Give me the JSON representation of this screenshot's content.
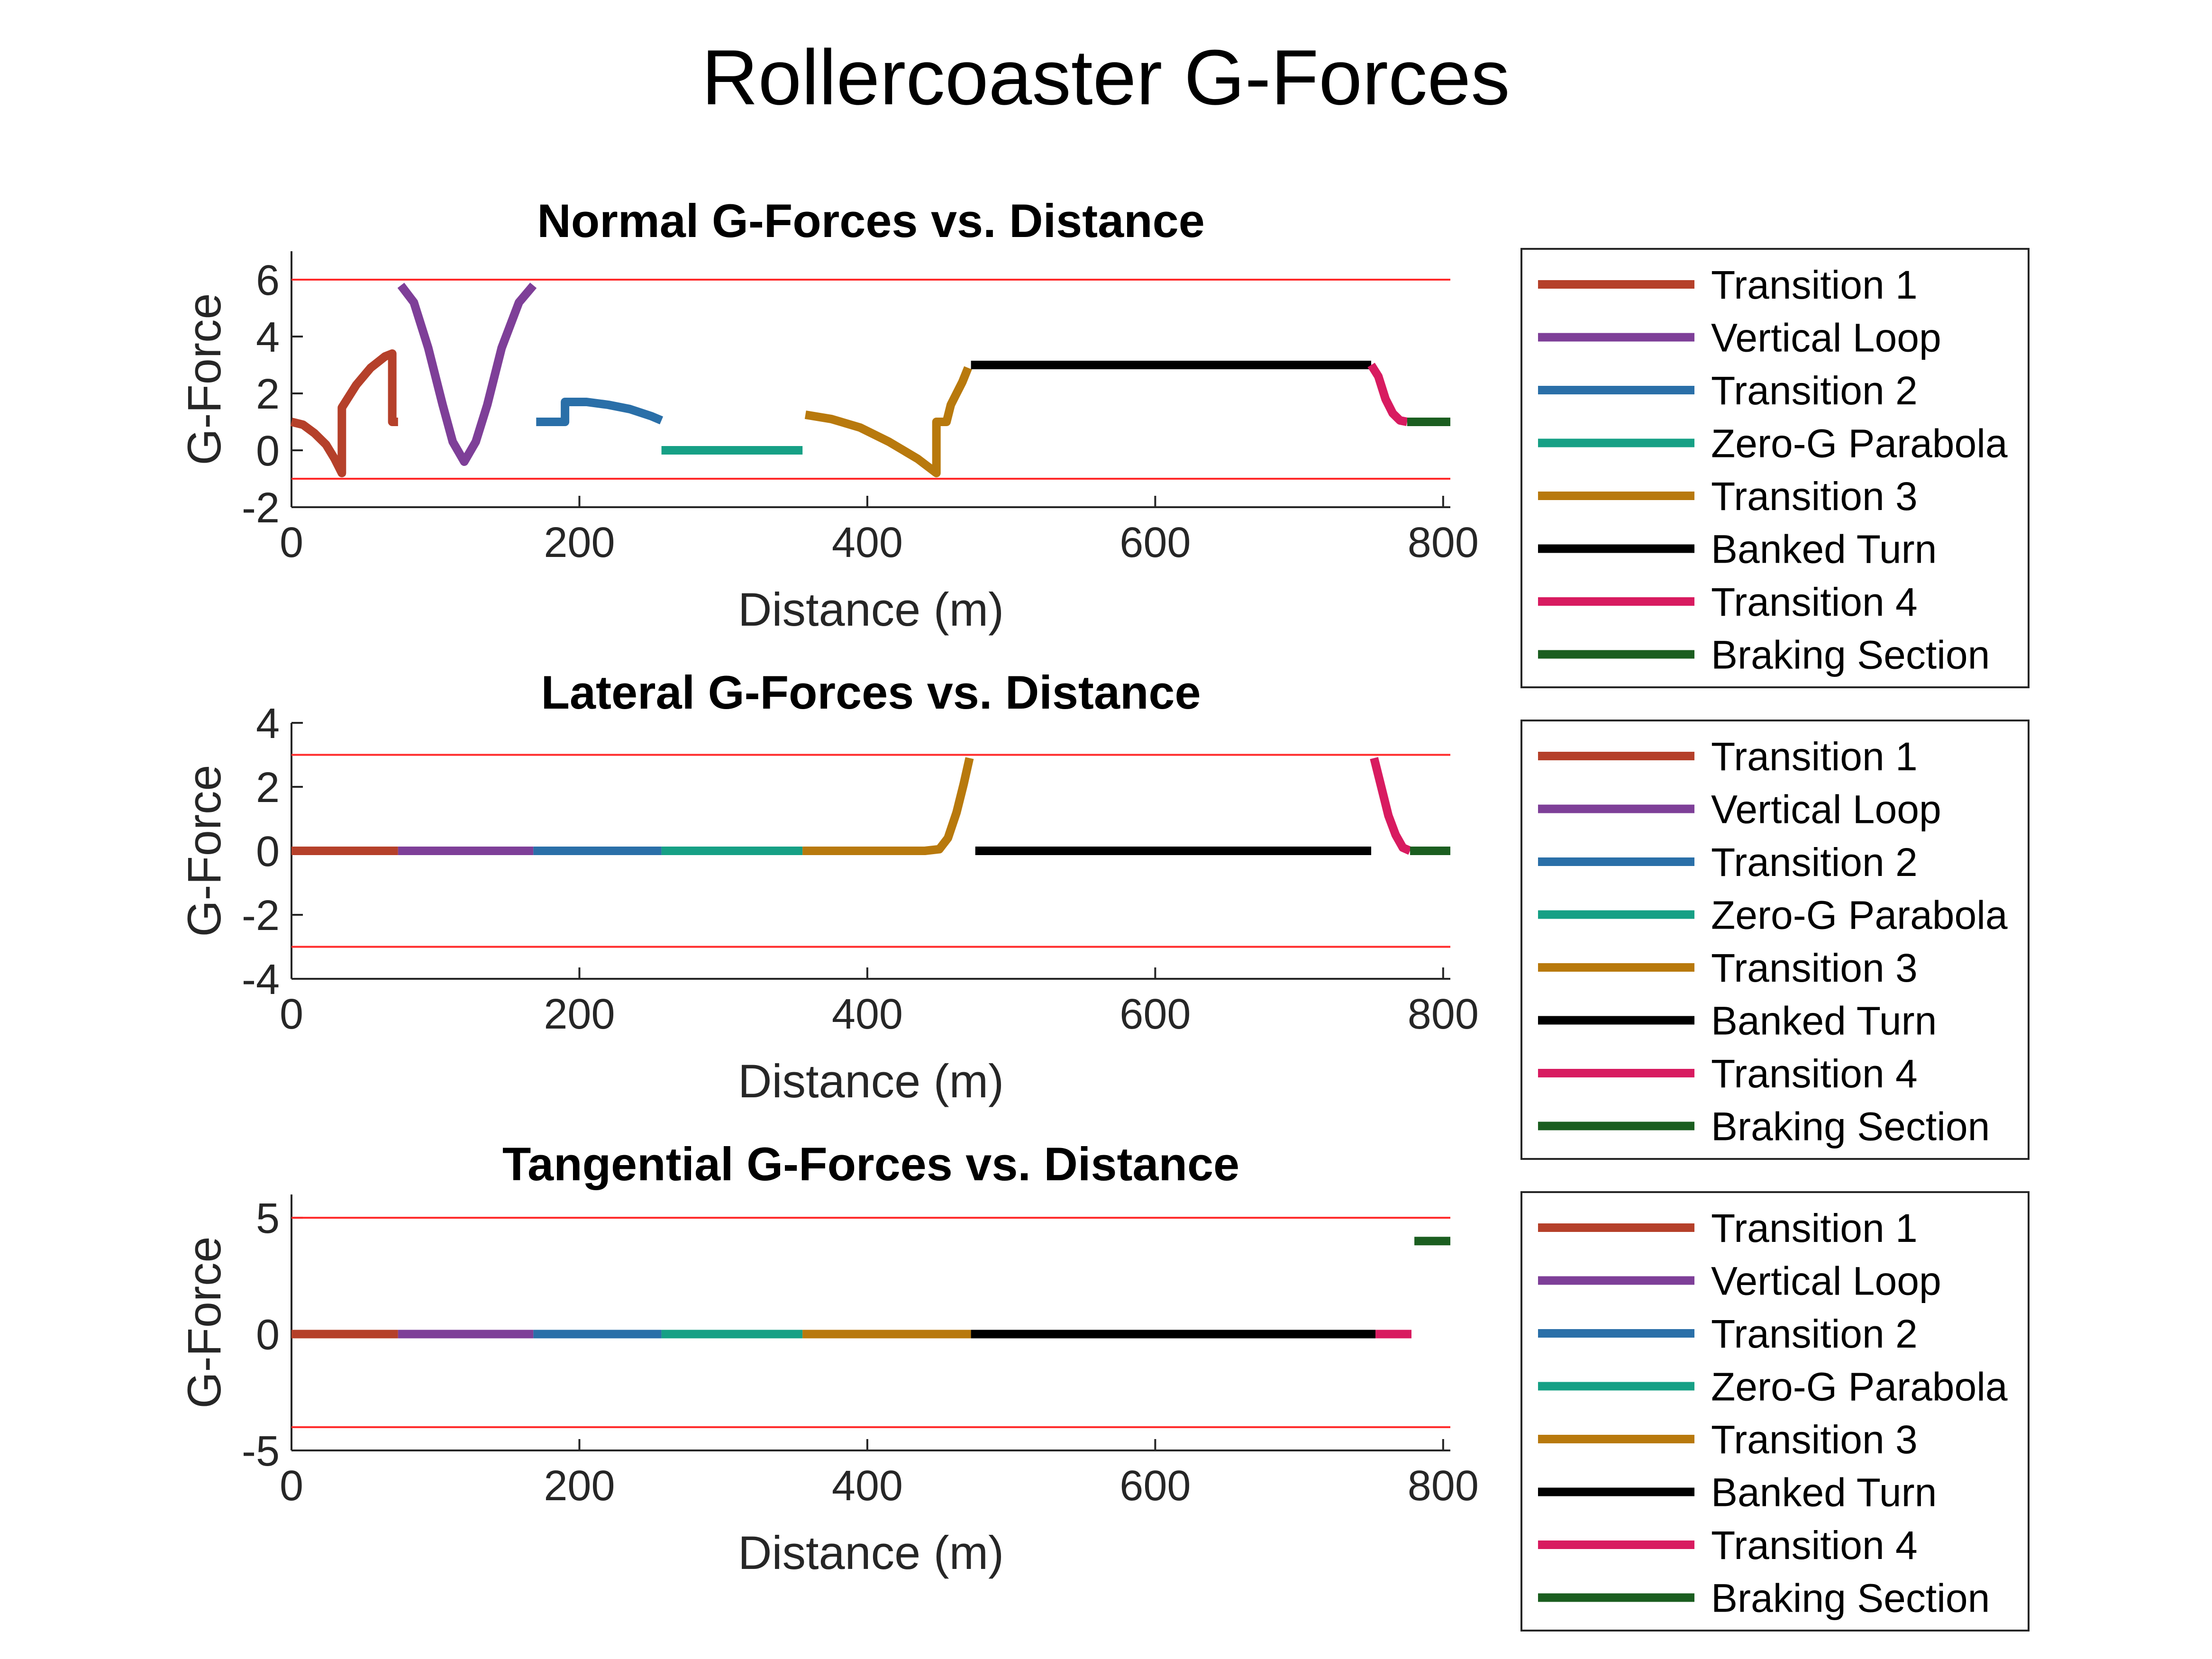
{
  "title": "Rollercoaster G-Forces",
  "colors": {
    "threshold": "#ff2a2a",
    "axis": "#262626",
    "Transition 1": "#b5402a",
    "Vertical Loop": "#7e3f98",
    "Transition 2": "#2a6fa8",
    "Zero-G Parabola": "#16a085",
    "Transition 3": "#b8790d",
    "Banked Turn": "#000000",
    "Transition 4": "#d81b60",
    "Braking Section": "#1b5e20"
  },
  "chart_data": [
    {
      "type": "line",
      "title": "Normal G-Forces vs. Distance",
      "xlabel": "Distance (m)",
      "ylabel": "G-Force",
      "xlim": [
        0,
        805
      ],
      "ylim": [
        -2,
        7
      ],
      "xticks": [
        0,
        200,
        400,
        600,
        800
      ],
      "yticks": [
        -2,
        0,
        2,
        4,
        6
      ],
      "thresholds": [
        6,
        -1
      ],
      "grid": false,
      "legend_position": "right",
      "legend": [
        "Transition 1",
        "Vertical Loop",
        "Transition 2",
        "Zero-G Parabola",
        "Transition 3",
        "Banked Turn",
        "Transition 4",
        "Braking Section"
      ],
      "series": [
        {
          "name": "Transition 1",
          "points": [
            [
              0,
              1.0
            ],
            [
              8,
              0.9
            ],
            [
              16,
              0.6
            ],
            [
              24,
              0.2
            ],
            [
              30,
              -0.3
            ],
            [
              35,
              -0.8
            ],
            [
              35,
              1.5
            ],
            [
              45,
              2.3
            ],
            [
              55,
              2.9
            ],
            [
              65,
              3.3
            ],
            [
              70,
              3.4
            ],
            [
              70,
              1.0
            ],
            [
              74,
              1.0
            ]
          ]
        },
        {
          "name": "Vertical Loop",
          "points": [
            [
              76,
              5.8
            ],
            [
              85,
              5.2
            ],
            [
              95,
              3.6
            ],
            [
              105,
              1.6
            ],
            [
              112,
              0.3
            ],
            [
              120,
              -0.4
            ],
            [
              128,
              0.3
            ],
            [
              136,
              1.6
            ],
            [
              146,
              3.6
            ],
            [
              158,
              5.2
            ],
            [
              168,
              5.8
            ]
          ]
        },
        {
          "name": "Transition 2",
          "points": [
            [
              170,
              1.0
            ],
            [
              190,
              1.0
            ],
            [
              190,
              1.7
            ],
            [
              205,
              1.7
            ],
            [
              220,
              1.6
            ],
            [
              235,
              1.45
            ],
            [
              250,
              1.2
            ],
            [
              257,
              1.05
            ]
          ]
        },
        {
          "name": "Zero-G Parabola",
          "points": [
            [
              257,
              0.0
            ],
            [
              355,
              0.0
            ]
          ]
        },
        {
          "name": "Transition 3",
          "points": [
            [
              357,
              1.25
            ],
            [
              375,
              1.1
            ],
            [
              395,
              0.8
            ],
            [
              415,
              0.3
            ],
            [
              435,
              -0.3
            ],
            [
              448,
              -0.8
            ],
            [
              448,
              1.0
            ],
            [
              455,
              1.0
            ],
            [
              458,
              1.6
            ],
            [
              462,
              2.0
            ],
            [
              466,
              2.4
            ],
            [
              470,
              2.9
            ]
          ]
        },
        {
          "name": "Banked Turn",
          "points": [
            [
              472,
              3.0
            ],
            [
              750,
              3.0
            ]
          ]
        },
        {
          "name": "Transition 4",
          "points": [
            [
              750,
              3.0
            ],
            [
              755,
              2.6
            ],
            [
              760,
              1.8
            ],
            [
              765,
              1.3
            ],
            [
              770,
              1.05
            ],
            [
              775,
              1.0
            ]
          ]
        },
        {
          "name": "Braking Section",
          "points": [
            [
              775,
              1.0
            ],
            [
              805,
              1.0
            ]
          ]
        }
      ]
    },
    {
      "type": "line",
      "title": "Lateral G-Forces vs. Distance",
      "xlabel": "Distance (m)",
      "ylabel": "G-Force",
      "xlim": [
        0,
        805
      ],
      "ylim": [
        -4,
        4
      ],
      "xticks": [
        0,
        200,
        400,
        600,
        800
      ],
      "yticks": [
        -4,
        -2,
        0,
        2,
        4
      ],
      "thresholds": [
        3,
        -3
      ],
      "grid": false,
      "legend_position": "right",
      "legend": [
        "Transition 1",
        "Vertical Loop",
        "Transition 2",
        "Zero-G Parabola",
        "Transition 3",
        "Banked Turn",
        "Transition 4",
        "Braking Section"
      ],
      "series": [
        {
          "name": "Transition 1",
          "points": [
            [
              0,
              0
            ],
            [
              74,
              0
            ]
          ]
        },
        {
          "name": "Vertical Loop",
          "points": [
            [
              74,
              0
            ],
            [
              168,
              0
            ]
          ]
        },
        {
          "name": "Transition 2",
          "points": [
            [
              168,
              0
            ],
            [
              257,
              0
            ]
          ]
        },
        {
          "name": "Zero-G Parabola",
          "points": [
            [
              257,
              0
            ],
            [
              355,
              0
            ]
          ]
        },
        {
          "name": "Transition 3",
          "points": [
            [
              355,
              0
            ],
            [
              440,
              0
            ],
            [
              450,
              0.05
            ],
            [
              456,
              0.4
            ],
            [
              462,
              1.2
            ],
            [
              467,
              2.1
            ],
            [
              471,
              2.9
            ]
          ]
        },
        {
          "name": "Banked Turn",
          "points": [
            [
              475,
              0
            ],
            [
              750,
              0
            ]
          ]
        },
        {
          "name": "Transition 4",
          "points": [
            [
              752,
              2.9
            ],
            [
              757,
              2.0
            ],
            [
              762,
              1.1
            ],
            [
              767,
              0.5
            ],
            [
              772,
              0.1
            ],
            [
              777,
              0
            ]
          ]
        },
        {
          "name": "Braking Section",
          "points": [
            [
              777,
              0
            ],
            [
              805,
              0
            ]
          ]
        }
      ]
    },
    {
      "type": "line",
      "title": "Tangential G-Forces vs. Distance",
      "xlabel": "Distance (m)",
      "ylabel": "G-Force",
      "xlim": [
        0,
        805
      ],
      "ylim": [
        -5,
        6
      ],
      "xticks": [
        0,
        200,
        400,
        600,
        800
      ],
      "yticks": [
        -5,
        0,
        5
      ],
      "thresholds": [
        5,
        -4
      ],
      "grid": false,
      "legend_position": "right",
      "legend": [
        "Transition 1",
        "Vertical Loop",
        "Transition 2",
        "Zero-G Parabola",
        "Transition 3",
        "Banked Turn",
        "Transition 4",
        "Braking Section"
      ],
      "series": [
        {
          "name": "Transition 1",
          "points": [
            [
              0,
              0
            ],
            [
              74,
              0
            ]
          ]
        },
        {
          "name": "Vertical Loop",
          "points": [
            [
              74,
              0
            ],
            [
              168,
              0
            ]
          ]
        },
        {
          "name": "Transition 2",
          "points": [
            [
              168,
              0
            ],
            [
              257,
              0
            ]
          ]
        },
        {
          "name": "Zero-G Parabola",
          "points": [
            [
              257,
              0
            ],
            [
              355,
              0
            ]
          ]
        },
        {
          "name": "Transition 3",
          "points": [
            [
              355,
              0
            ],
            [
              472,
              0
            ]
          ]
        },
        {
          "name": "Banked Turn",
          "points": [
            [
              472,
              0
            ],
            [
              753,
              0
            ]
          ]
        },
        {
          "name": "Transition 4",
          "points": [
            [
              753,
              0
            ],
            [
              778,
              0
            ]
          ]
        },
        {
          "name": "Braking Section",
          "points": [
            [
              780,
              4
            ],
            [
              805,
              4
            ]
          ]
        }
      ]
    }
  ]
}
